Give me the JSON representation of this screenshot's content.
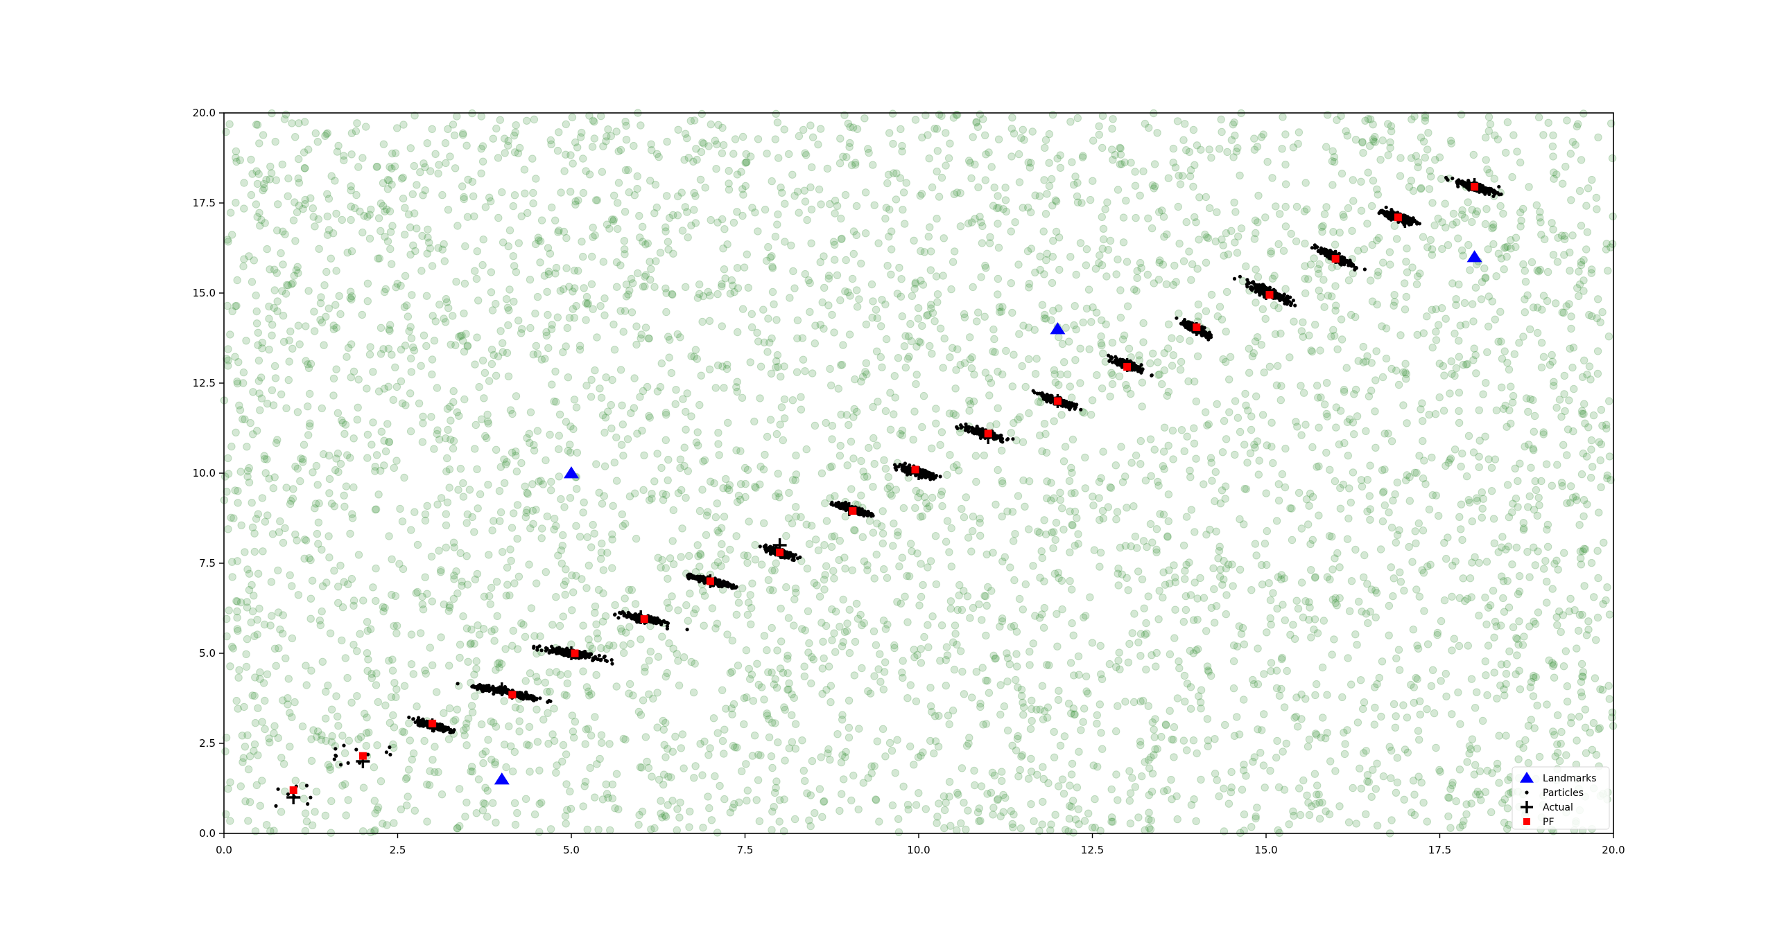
{
  "chart_data": {
    "type": "scatter",
    "title": "",
    "xlabel": "",
    "ylabel": "",
    "xlim": [
      0.0,
      20.0
    ],
    "ylim": [
      0.0,
      20.0
    ],
    "xticks": [
      "0.0",
      "2.5",
      "5.0",
      "7.5",
      "10.0",
      "12.5",
      "15.0",
      "17.5",
      "20.0"
    ],
    "yticks": [
      "0.0",
      "2.5",
      "5.0",
      "7.5",
      "10.0",
      "12.5",
      "15.0",
      "17.5",
      "20.0"
    ],
    "grid": false,
    "legend_position": "lower-right",
    "initial_particles": {
      "count": 5000,
      "distribution": "uniform",
      "range": [
        [
          0.0,
          20.0
        ],
        [
          0.0,
          20.0
        ]
      ],
      "color": "#2e8b2e",
      "alpha": 0.2
    },
    "series": [
      {
        "name": "Landmarks",
        "marker": "triangle",
        "color": "#0000ff",
        "points": [
          [
            5,
            10
          ],
          [
            12,
            14
          ],
          [
            18,
            16
          ],
          [
            4,
            1.5
          ]
        ]
      },
      {
        "name": "Particles",
        "marker": "dot",
        "color": "#000000",
        "clusters": [
          {
            "center": [
              1.0,
              1.1
            ],
            "major": 0.4,
            "minor": 0.4,
            "angle": 0,
            "count": 8,
            "sparse": true
          },
          {
            "center": [
              2.0,
              2.2
            ],
            "major": 0.5,
            "minor": 0.3,
            "angle": 0,
            "count": 14,
            "sparse": true
          },
          {
            "center": [
              3.0,
              3.0
            ],
            "major": 0.3,
            "minor": 0.09,
            "angle": -28
          },
          {
            "center": [
              4.1,
              3.9
            ],
            "major": 0.6,
            "minor": 0.09,
            "angle": -22
          },
          {
            "center": [
              5.0,
              5.0
            ],
            "major": 0.45,
            "minor": 0.09,
            "angle": -20
          },
          {
            "center": [
              6.05,
              5.95
            ],
            "major": 0.35,
            "minor": 0.09,
            "angle": -22
          },
          {
            "center": [
              7.0,
              7.0
            ],
            "major": 0.35,
            "minor": 0.08,
            "angle": -25
          },
          {
            "center": [
              8.0,
              7.8
            ],
            "major": 0.28,
            "minor": 0.09,
            "angle": -35
          },
          {
            "center": [
              9.05,
              9.0
            ],
            "major": 0.32,
            "minor": 0.08,
            "angle": -30
          },
          {
            "center": [
              9.95,
              10.05
            ],
            "major": 0.35,
            "minor": 0.09,
            "angle": -30
          },
          {
            "center": [
              10.95,
              11.1
            ],
            "major": 0.38,
            "minor": 0.09,
            "angle": -30
          },
          {
            "center": [
              12.0,
              12.0
            ],
            "major": 0.33,
            "minor": 0.08,
            "angle": -35
          },
          {
            "center": [
              13.0,
              13.0
            ],
            "major": 0.28,
            "minor": 0.09,
            "angle": -40
          },
          {
            "center": [
              14.0,
              14.0
            ],
            "major": 0.3,
            "minor": 0.09,
            "angle": -45
          },
          {
            "center": [
              15.05,
              15.0
            ],
            "major": 0.45,
            "minor": 0.1,
            "angle": -42
          },
          {
            "center": [
              16.0,
              16.0
            ],
            "major": 0.36,
            "minor": 0.1,
            "angle": -45
          },
          {
            "center": [
              16.9,
              17.1
            ],
            "major": 0.28,
            "minor": 0.09,
            "angle": -35
          },
          {
            "center": [
              18.0,
              17.95
            ],
            "major": 0.35,
            "minor": 0.09,
            "angle": -30
          }
        ]
      },
      {
        "name": "Actual",
        "marker": "plus",
        "color": "#000000",
        "points": [
          [
            1,
            1
          ],
          [
            2,
            2
          ],
          [
            3,
            3
          ],
          [
            4,
            4
          ],
          [
            5,
            5
          ],
          [
            6,
            6
          ],
          [
            7,
            7
          ],
          [
            8,
            8
          ],
          [
            9,
            9
          ],
          [
            10,
            10
          ],
          [
            11,
            11
          ],
          [
            12,
            12
          ],
          [
            13,
            13
          ],
          [
            14,
            14
          ],
          [
            15,
            15
          ],
          [
            16,
            16
          ],
          [
            17,
            17
          ],
          [
            18,
            18
          ]
        ]
      },
      {
        "name": "PF",
        "marker": "square",
        "color": "#ff0000",
        "points": [
          [
            1.0,
            1.2
          ],
          [
            2.0,
            2.15
          ],
          [
            3.0,
            3.05
          ],
          [
            4.15,
            3.85
          ],
          [
            5.05,
            5.0
          ],
          [
            6.05,
            5.95
          ],
          [
            7.0,
            7.0
          ],
          [
            8.0,
            7.8
          ],
          [
            9.05,
            8.95
          ],
          [
            9.95,
            10.1
          ],
          [
            11.0,
            11.1
          ],
          [
            12.0,
            12.0
          ],
          [
            13.0,
            12.95
          ],
          [
            14.0,
            14.05
          ],
          [
            15.05,
            14.95
          ],
          [
            16.0,
            15.95
          ],
          [
            16.9,
            17.1
          ],
          [
            18.0,
            17.95
          ]
        ]
      }
    ],
    "legend": [
      {
        "label": "Landmarks",
        "marker": "triangle",
        "color": "#0000ff"
      },
      {
        "label": "Particles",
        "marker": "dot",
        "color": "#000000"
      },
      {
        "label": "Actual",
        "marker": "plus",
        "color": "#000000"
      },
      {
        "label": "PF",
        "marker": "square",
        "color": "#ff0000"
      }
    ]
  }
}
